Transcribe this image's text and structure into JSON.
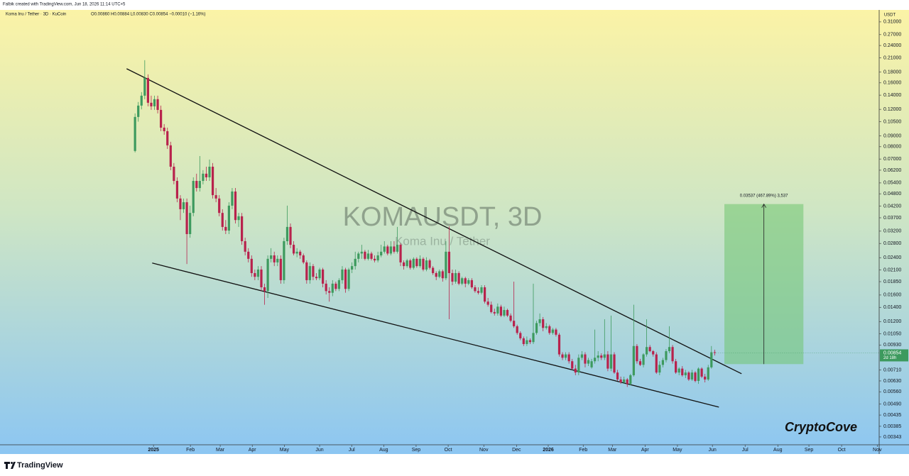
{
  "chart_data": {
    "type": "candlestick",
    "credit": "Falbik created with TradingView.com, Jun 18, 2026 11:14 UTC+5",
    "legend": "Koma Inu / Tether · 3D · KuCoin",
    "ohlc": "O0.00860 H0.00884 L0.00830 C0.00854 −0.00010 (−1.16%)",
    "symbol_title": "KOMAUSDT, 3D",
    "symbol_name": "Koma Inu / Tether",
    "currency": "USDT",
    "countdown": "2d 18h",
    "signature": "CryptoCove",
    "brand": "TradingView",
    "log_scale": true,
    "up_color": "#3d9a5e",
    "down_color": "#b8224c",
    "ylim": [
      0.00315,
      0.353
    ],
    "yticks": [
      {
        "value": 0.31,
        "label": "0.31000"
      },
      {
        "value": 0.27,
        "label": "0.27000"
      },
      {
        "value": 0.24,
        "label": "0.24000"
      },
      {
        "value": 0.21,
        "label": "0.21000"
      },
      {
        "value": 0.18,
        "label": "0.18000"
      },
      {
        "value": 0.16,
        "label": "0.16000"
      },
      {
        "value": 0.14,
        "label": "0.14000"
      },
      {
        "value": 0.12,
        "label": "0.12000"
      },
      {
        "value": 0.105,
        "label": "0.10500"
      },
      {
        "value": 0.09,
        "label": "0.09000"
      },
      {
        "value": 0.08,
        "label": "0.08000"
      },
      {
        "value": 0.07,
        "label": "0.07000"
      },
      {
        "value": 0.062,
        "label": "0.06200"
      },
      {
        "value": 0.054,
        "label": "0.05400"
      },
      {
        "value": 0.048,
        "label": "0.04800"
      },
      {
        "value": 0.042,
        "label": "0.04200"
      },
      {
        "value": 0.037,
        "label": "0.03700"
      },
      {
        "value": 0.032,
        "label": "0.03200"
      },
      {
        "value": 0.028,
        "label": "0.02800"
      },
      {
        "value": 0.024,
        "label": "0.02400"
      },
      {
        "value": 0.021,
        "label": "0.02100"
      },
      {
        "value": 0.0185,
        "label": "0.01850"
      },
      {
        "value": 0.016,
        "label": "0.01600"
      },
      {
        "value": 0.014,
        "label": "0.01400"
      },
      {
        "value": 0.012,
        "label": "0.01200"
      },
      {
        "value": 0.0105,
        "label": "0.01050"
      },
      {
        "value": 0.0093,
        "label": "0.00930"
      },
      {
        "value": 0.0071,
        "label": "0.00710"
      },
      {
        "value": 0.0063,
        "label": "0.00630"
      },
      {
        "value": 0.0056,
        "label": "0.00560"
      },
      {
        "value": 0.0049,
        "label": "0.00490"
      },
      {
        "value": 0.00435,
        "label": "0.00435"
      },
      {
        "value": 0.00385,
        "label": "0.00385"
      },
      {
        "value": 0.00343,
        "label": "0.00343"
      }
    ],
    "xlim": [
      -41.7,
      229.8
    ],
    "xticks": [
      {
        "value": 5.7,
        "label": "2025"
      },
      {
        "value": 17.1,
        "label": "Feb"
      },
      {
        "value": 26.3,
        "label": "Mar"
      },
      {
        "value": 36.2,
        "label": "Apr"
      },
      {
        "value": 46.1,
        "label": "May"
      },
      {
        "value": 57.0,
        "label": "Jun"
      },
      {
        "value": 66.9,
        "label": "Jul"
      },
      {
        "value": 76.8,
        "label": "Aug"
      },
      {
        "value": 86.8,
        "label": "Sep"
      },
      {
        "value": 96.7,
        "label": "Oct"
      },
      {
        "value": 107.7,
        "label": "Nov"
      },
      {
        "value": 117.8,
        "label": "Dec"
      },
      {
        "value": 127.6,
        "label": "2026"
      },
      {
        "value": 138.4,
        "label": "Feb"
      },
      {
        "value": 147.4,
        "label": "Mar"
      },
      {
        "value": 157.5,
        "label": "Apr"
      },
      {
        "value": 167.5,
        "label": "May"
      },
      {
        "value": 178.3,
        "label": "Jun"
      },
      {
        "value": 188.4,
        "label": "Jul"
      },
      {
        "value": 198.5,
        "label": "Aug"
      },
      {
        "value": 208.1,
        "label": "Sep"
      },
      {
        "value": 218.2,
        "label": "Oct"
      },
      {
        "value": 229.2,
        "label": "Nov"
      }
    ],
    "candles": [
      [
        0.0764,
        0.1148,
        0.0752,
        0.1105
      ],
      [
        0.1105,
        0.13,
        0.105,
        0.125
      ],
      [
        0.125,
        0.1447,
        0.12,
        0.1392
      ],
      [
        0.1392,
        0.2046,
        0.134,
        0.1687
      ],
      [
        0.1687,
        0.1754,
        0.124,
        0.1289
      ],
      [
        0.1289,
        0.1392,
        0.1193,
        0.124
      ],
      [
        0.124,
        0.1392,
        0.1193,
        0.134
      ],
      [
        0.134,
        0.1392,
        0.1148,
        0.1193
      ],
      [
        0.1193,
        0.125,
        0.0947,
        0.0984
      ],
      [
        0.0984,
        0.1023,
        0.0911,
        0.0947
      ],
      [
        0.0947,
        0.0984,
        0.0781,
        0.0812
      ],
      [
        0.0812,
        0.0844,
        0.062,
        0.0644
      ],
      [
        0.0644,
        0.067,
        0.0532,
        0.0552
      ],
      [
        0.0552,
        0.0574,
        0.0438,
        0.0456
      ],
      [
        0.0456,
        0.0473,
        0.0361,
        0.0406
      ],
      [
        0.0406,
        0.0456,
        0.039,
        0.0438
      ],
      [
        0.0438,
        0.0456,
        0.0224,
        0.031
      ],
      [
        0.031,
        0.0422,
        0.0298,
        0.039
      ],
      [
        0.039,
        0.0574,
        0.0376,
        0.0552
      ],
      [
        0.0552,
        0.0597,
        0.0492,
        0.0511
      ],
      [
        0.0511,
        0.0723,
        0.0492,
        0.0552
      ],
      [
        0.0552,
        0.062,
        0.0532,
        0.0597
      ],
      [
        0.0597,
        0.0644,
        0.0552,
        0.0574
      ],
      [
        0.0574,
        0.0696,
        0.0552,
        0.0644
      ],
      [
        0.0644,
        0.067,
        0.0456,
        0.0473
      ],
      [
        0.0473,
        0.0511,
        0.0438,
        0.0456
      ],
      [
        0.0456,
        0.0473,
        0.0376,
        0.039
      ],
      [
        0.039,
        0.0406,
        0.0322,
        0.0335
      ],
      [
        0.0335,
        0.0361,
        0.031,
        0.0322
      ],
      [
        0.0322,
        0.0438,
        0.031,
        0.0422
      ],
      [
        0.0422,
        0.0511,
        0.0406,
        0.0492
      ],
      [
        0.0492,
        0.0511,
        0.0348,
        0.0361
      ],
      [
        0.0361,
        0.039,
        0.0335,
        0.0376
      ],
      [
        0.0376,
        0.039,
        0.0276,
        0.0287
      ],
      [
        0.0287,
        0.0298,
        0.0246,
        0.0256
      ],
      [
        0.0256,
        0.0266,
        0.0228,
        0.0237
      ],
      [
        0.0237,
        0.0246,
        0.0195,
        0.0203
      ],
      [
        0.0203,
        0.0211,
        0.0188,
        0.0195
      ],
      [
        0.0195,
        0.0219,
        0.0188,
        0.0211
      ],
      [
        0.0211,
        0.0219,
        0.0167,
        0.0174
      ],
      [
        0.0174,
        0.0181,
        0.0144,
        0.0167
      ],
      [
        0.0167,
        0.0246,
        0.0155,
        0.0237
      ],
      [
        0.0237,
        0.0266,
        0.0228,
        0.0246
      ],
      [
        0.0246,
        0.0256,
        0.0219,
        0.0228
      ],
      [
        0.0228,
        0.0246,
        0.0219,
        0.0237
      ],
      [
        0.0237,
        0.0246,
        0.0181,
        0.0188
      ],
      [
        0.0188,
        0.0298,
        0.0181,
        0.0287
      ],
      [
        0.0287,
        0.0422,
        0.0276,
        0.0335
      ],
      [
        0.0335,
        0.0348,
        0.0266,
        0.0276
      ],
      [
        0.0276,
        0.0287,
        0.0246,
        0.0251
      ],
      [
        0.0251,
        0.0266,
        0.0241,
        0.0256
      ],
      [
        0.0256,
        0.0261,
        0.0237,
        0.0246
      ],
      [
        0.0246,
        0.0251,
        0.0224,
        0.0228
      ],
      [
        0.0228,
        0.0233,
        0.0181,
        0.0188
      ],
      [
        0.0188,
        0.0228,
        0.0181,
        0.0219
      ],
      [
        0.0219,
        0.0224,
        0.0188,
        0.0195
      ],
      [
        0.0195,
        0.0203,
        0.0188,
        0.0192
      ],
      [
        0.0192,
        0.0215,
        0.0188,
        0.0211
      ],
      [
        0.0211,
        0.0215,
        0.0174,
        0.0181
      ],
      [
        0.0181,
        0.0188,
        0.0161,
        0.0167
      ],
      [
        0.0167,
        0.0174,
        0.0149,
        0.0164
      ],
      [
        0.0164,
        0.0188,
        0.0158,
        0.0181
      ],
      [
        0.0181,
        0.0185,
        0.0167,
        0.0171
      ],
      [
        0.0171,
        0.0192,
        0.0167,
        0.0188
      ],
      [
        0.0188,
        0.0219,
        0.0181,
        0.0211
      ],
      [
        0.0211,
        0.0215,
        0.0164,
        0.0171
      ],
      [
        0.0171,
        0.0215,
        0.0167,
        0.0211
      ],
      [
        0.0211,
        0.0228,
        0.0203,
        0.0219
      ],
      [
        0.0219,
        0.0256,
        0.0211,
        0.0237
      ],
      [
        0.0237,
        0.0256,
        0.0228,
        0.0251
      ],
      [
        0.0251,
        0.0276,
        0.0237,
        0.0256
      ],
      [
        0.0256,
        0.0261,
        0.0233,
        0.0237
      ],
      [
        0.0237,
        0.0261,
        0.0233,
        0.0251
      ],
      [
        0.0251,
        0.0256,
        0.0233,
        0.0237
      ],
      [
        0.0237,
        0.0246,
        0.0228,
        0.0233
      ],
      [
        0.0233,
        0.0256,
        0.0228,
        0.0246
      ],
      [
        0.0246,
        0.0276,
        0.0241,
        0.0256
      ],
      [
        0.0256,
        0.0287,
        0.0251,
        0.0271
      ],
      [
        0.0271,
        0.0276,
        0.0246,
        0.0251
      ],
      [
        0.0251,
        0.0287,
        0.0246,
        0.0271
      ],
      [
        0.0271,
        0.0287,
        0.0251,
        0.0256
      ],
      [
        0.0256,
        0.0335,
        0.0251,
        0.0276
      ],
      [
        0.0276,
        0.0281,
        0.0219,
        0.0228
      ],
      [
        0.0228,
        0.0233,
        0.0211,
        0.0219
      ],
      [
        0.0219,
        0.0237,
        0.0215,
        0.0233
      ],
      [
        0.0233,
        0.0237,
        0.0211,
        0.0215
      ],
      [
        0.0215,
        0.0241,
        0.0211,
        0.0237
      ],
      [
        0.0237,
        0.0241,
        0.0215,
        0.0219
      ],
      [
        0.0219,
        0.0246,
        0.0215,
        0.0237
      ],
      [
        0.0237,
        0.0241,
        0.0207,
        0.0211
      ],
      [
        0.0211,
        0.0241,
        0.0207,
        0.0233
      ],
      [
        0.0233,
        0.0237,
        0.0211,
        0.0215
      ],
      [
        0.0215,
        0.0219,
        0.0199,
        0.0203
      ],
      [
        0.0203,
        0.0207,
        0.0188,
        0.0195
      ],
      [
        0.0195,
        0.0211,
        0.0192,
        0.0207
      ],
      [
        0.0207,
        0.0211,
        0.0185,
        0.0192
      ],
      [
        0.0192,
        0.0287,
        0.0188,
        0.0256
      ],
      [
        0.0256,
        0.0337,
        0.0123,
        0.0203
      ],
      [
        0.0203,
        0.0211,
        0.0178,
        0.0185
      ],
      [
        0.0185,
        0.0211,
        0.0181,
        0.0203
      ],
      [
        0.0203,
        0.0207,
        0.0178,
        0.0181
      ],
      [
        0.0181,
        0.0195,
        0.0178,
        0.0192
      ],
      [
        0.0192,
        0.0195,
        0.0174,
        0.0181
      ],
      [
        0.0181,
        0.0192,
        0.0178,
        0.0188
      ],
      [
        0.0188,
        0.0192,
        0.0171,
        0.0174
      ],
      [
        0.0174,
        0.0178,
        0.0164,
        0.0167
      ],
      [
        0.0167,
        0.0174,
        0.0161,
        0.0164
      ],
      [
        0.0164,
        0.0178,
        0.0161,
        0.0174
      ],
      [
        0.0174,
        0.0178,
        0.0146,
        0.0149
      ],
      [
        0.0149,
        0.0155,
        0.0141,
        0.0144
      ],
      [
        0.0144,
        0.0149,
        0.0131,
        0.0133
      ],
      [
        0.0133,
        0.0138,
        0.0128,
        0.0131
      ],
      [
        0.0131,
        0.0146,
        0.0128,
        0.0141
      ],
      [
        0.0141,
        0.0144,
        0.0126,
        0.0128
      ],
      [
        0.0128,
        0.0141,
        0.0126,
        0.0136
      ],
      [
        0.0136,
        0.0138,
        0.0126,
        0.0128
      ],
      [
        0.0128,
        0.0131,
        0.0119,
        0.0121
      ],
      [
        0.0121,
        0.0185,
        0.0112,
        0.0114
      ],
      [
        0.0114,
        0.0116,
        0.0104,
        0.0106
      ],
      [
        0.0106,
        0.0108,
        0.0098,
        0.01
      ],
      [
        0.01,
        0.0102,
        0.0092,
        0.0094
      ],
      [
        0.0094,
        0.0102,
        0.0092,
        0.0098
      ],
      [
        0.0098,
        0.01,
        0.0094,
        0.0096
      ],
      [
        0.0096,
        0.0181,
        0.0094,
        0.0106
      ],
      [
        0.0106,
        0.0121,
        0.0104,
        0.0118
      ],
      [
        0.0118,
        0.0131,
        0.0114,
        0.0123
      ],
      [
        0.0123,
        0.0126,
        0.0108,
        0.0112
      ],
      [
        0.0112,
        0.0118,
        0.011,
        0.0114
      ],
      [
        0.0114,
        0.0116,
        0.0104,
        0.0106
      ],
      [
        0.0106,
        0.0112,
        0.0104,
        0.011
      ],
      [
        0.011,
        0.0112,
        0.0102,
        0.0104
      ],
      [
        0.0104,
        0.0106,
        0.0082,
        0.0084
      ],
      [
        0.0084,
        0.0086,
        0.0079,
        0.0081
      ],
      [
        0.0081,
        0.0086,
        0.0079,
        0.0084
      ],
      [
        0.0084,
        0.0086,
        0.0076,
        0.0078
      ],
      [
        0.0078,
        0.008,
        0.0071,
        0.0072
      ],
      [
        0.0072,
        0.0075,
        0.0067,
        0.0069
      ],
      [
        0.0069,
        0.0084,
        0.0067,
        0.0081
      ],
      [
        0.0081,
        0.0087,
        0.0079,
        0.0084
      ],
      [
        0.0084,
        0.0086,
        0.0073,
        0.0076
      ],
      [
        0.0076,
        0.0081,
        0.0074,
        0.0079
      ],
      [
        0.0073,
        0.008,
        0.0072,
        0.0078
      ],
      [
        0.0078,
        0.011,
        0.0076,
        0.0081
      ],
      [
        0.0081,
        0.0087,
        0.0078,
        0.0083
      ],
      [
        0.0083,
        0.0085,
        0.0079,
        0.0081
      ],
      [
        0.0081,
        0.0123,
        0.0079,
        0.0084
      ],
      [
        0.0084,
        0.0087,
        0.007,
        0.0072
      ],
      [
        0.0072,
        0.0128,
        0.007,
        0.0084
      ],
      [
        0.0084,
        0.0086,
        0.0068,
        0.0069
      ],
      [
        0.0069,
        0.0071,
        0.0063,
        0.0064
      ],
      [
        0.0064,
        0.0066,
        0.0061,
        0.0062
      ],
      [
        0.0062,
        0.0066,
        0.0061,
        0.0064
      ],
      [
        0.0064,
        0.0065,
        0.0059,
        0.0061
      ],
      [
        0.0061,
        0.0068,
        0.006,
        0.0067
      ],
      [
        0.0067,
        0.0144,
        0.0066,
        0.0092
      ],
      [
        0.0092,
        0.0094,
        0.0076,
        0.0078
      ],
      [
        0.0078,
        0.008,
        0.0074,
        0.0075
      ],
      [
        0.0075,
        0.0085,
        0.0073,
        0.0084
      ],
      [
        0.0084,
        0.0123,
        0.0082,
        0.0091
      ],
      [
        0.0091,
        0.0093,
        0.0086,
        0.0087
      ],
      [
        0.0087,
        0.0088,
        0.0082,
        0.0084
      ],
      [
        0.0084,
        0.0086,
        0.0068,
        0.0069
      ],
      [
        0.0069,
        0.0078,
        0.0067,
        0.0075
      ],
      [
        0.0075,
        0.0081,
        0.0073,
        0.0079
      ],
      [
        0.0079,
        0.0089,
        0.0077,
        0.0087
      ],
      [
        0.0087,
        0.0114,
        0.0085,
        0.0091
      ],
      [
        0.0091,
        0.0093,
        0.0076,
        0.0078
      ],
      [
        0.0078,
        0.008,
        0.0068,
        0.0069
      ],
      [
        0.0069,
        0.0073,
        0.0067,
        0.0072
      ],
      [
        0.0072,
        0.0074,
        0.0066,
        0.0067
      ],
      [
        0.0067,
        0.0071,
        0.0065,
        0.0069
      ],
      [
        0.0069,
        0.007,
        0.0063,
        0.0064
      ],
      [
        0.0064,
        0.0071,
        0.0063,
        0.0069
      ],
      [
        0.0069,
        0.007,
        0.0062,
        0.0063
      ],
      [
        0.0063,
        0.0073,
        0.0061,
        0.0072
      ],
      [
        0.0072,
        0.0073,
        0.0065,
        0.0066
      ],
      [
        0.0066,
        0.0068,
        0.0062,
        0.0064
      ],
      [
        0.0064,
        0.0075,
        0.0063,
        0.0073
      ],
      [
        0.0073,
        0.0092,
        0.0072,
        0.0086
      ],
      [
        0.0086,
        0.00884,
        0.0083,
        0.00854
      ]
    ],
    "trendlines": [
      [
        [
          -2.6,
          0.1865
        ],
        [
          187.3,
          0.00681
        ]
      ],
      [
        [
          5.3,
          0.02264
        ],
        [
          180.3,
          0.00474
        ]
      ]
    ],
    "target_box": {
      "x": [
        182.0,
        206.4
      ],
      "y": [
        0.00756,
        0.04293
      ],
      "label": "0.03537 (467.89%) 3,537"
    }
  }
}
